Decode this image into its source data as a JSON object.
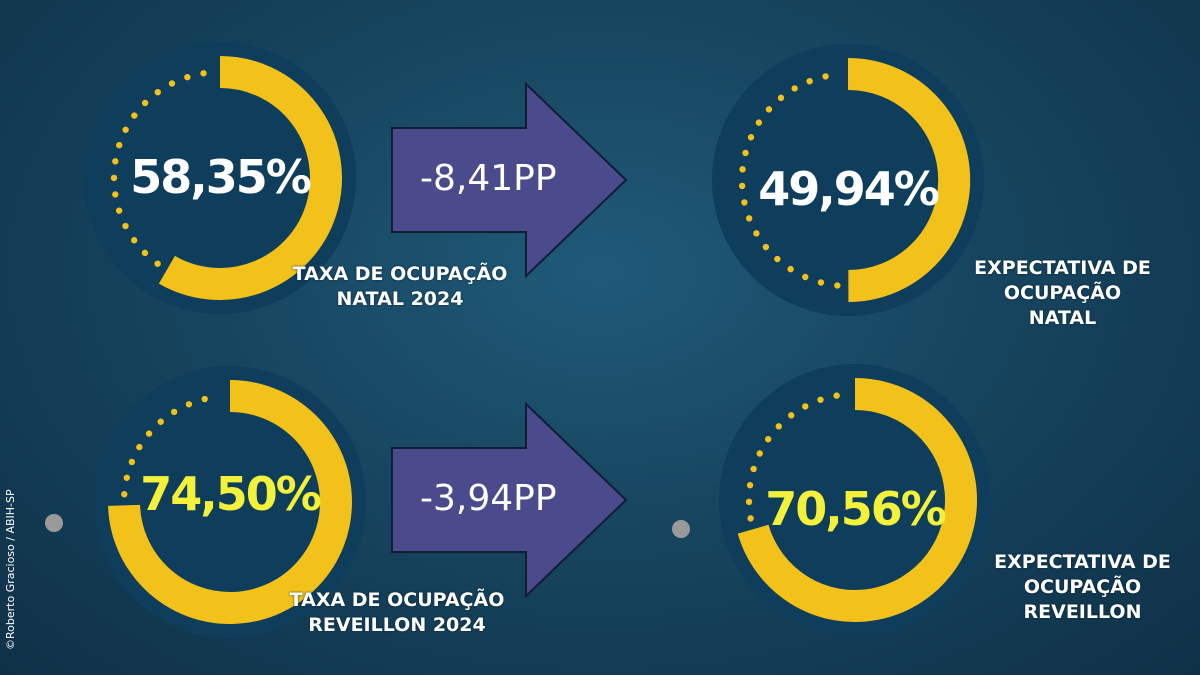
{
  "chart_data": {
    "type": "gauge",
    "gauges": [
      {
        "id": "natal-2024",
        "value": 58.35,
        "label": "58,35%",
        "caption_lines": [
          "TAXA DE OCUPAÇÃO",
          "NATAL 2024"
        ]
      },
      {
        "id": "natal-expect",
        "value": 49.94,
        "label": "49,94%",
        "caption_lines": [
          "EXPECTATIVA DE",
          "OCUPAÇÃO",
          "NATAL"
        ]
      },
      {
        "id": "reveillon-2024",
        "value": 74.5,
        "label": "74,50%",
        "caption_lines": [
          "TAXA DE OCUPAÇÃO",
          "REVEILLON 2024"
        ]
      },
      {
        "id": "reveillon-expect",
        "value": 70.56,
        "label": "70,56%",
        "caption_lines": [
          "EXPECTATIVA DE",
          "OCUPAÇÃO",
          "REVEILLON"
        ]
      }
    ],
    "deltas": [
      {
        "from": "natal-2024",
        "to": "natal-expect",
        "label": "-8,41PP"
      },
      {
        "from": "reveillon-2024",
        "to": "reveillon-expect",
        "label": "-3,94PP"
      }
    ],
    "colors": {
      "ring": "#f2c21b",
      "disc": "#0f3d5c",
      "arrow": "#4b4a8c",
      "value_natal": "#ffffff",
      "value_reveillon": "#f3f13a"
    }
  },
  "credit": "©Roberto Gracioso / ABIH-SP"
}
